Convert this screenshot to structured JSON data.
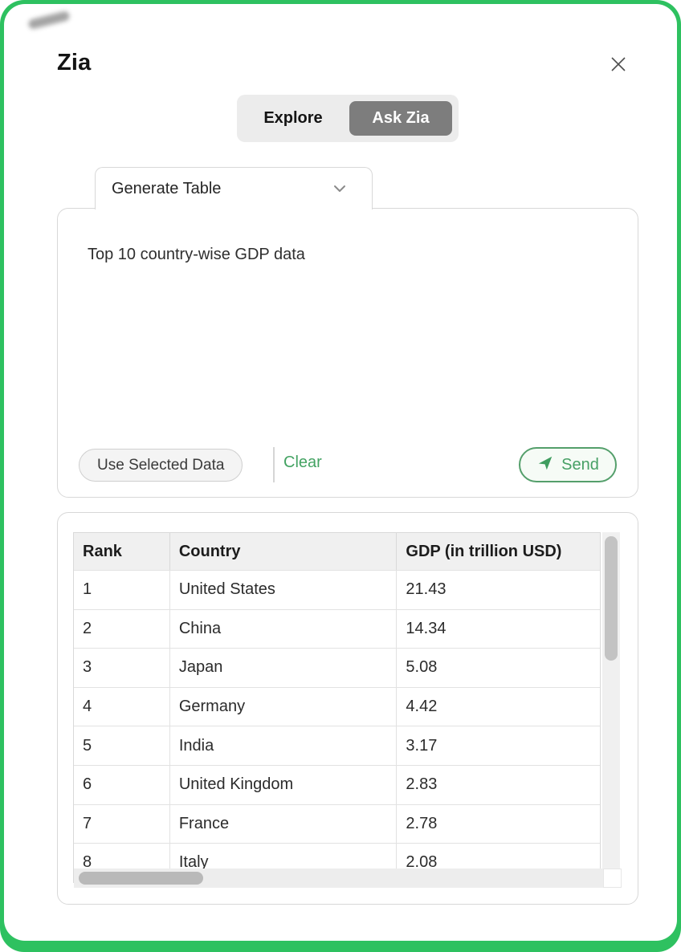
{
  "window": {
    "title": "Zia"
  },
  "mode_toggle": {
    "options": [
      {
        "label": "Explore",
        "selected": false
      },
      {
        "label": "Ask Zia",
        "selected": true
      }
    ]
  },
  "prompt": {
    "tab_label": "Generate Table",
    "text": "Top 10 country-wise GDP data",
    "use_selected_data_label": "Use Selected Data",
    "clear_label": "Clear",
    "send_label": "Send"
  },
  "table": {
    "columns": [
      "Rank",
      "Country",
      "GDP (in trillion USD)"
    ],
    "rows": [
      [
        "1",
        "United States",
        "21.43"
      ],
      [
        "2",
        "China",
        "14.34"
      ],
      [
        "3",
        "Japan",
        "5.08"
      ],
      [
        "4",
        "Germany",
        "4.42"
      ],
      [
        "5",
        "India",
        "3.17"
      ],
      [
        "6",
        "United Kingdom",
        "2.83"
      ],
      [
        "7",
        "France",
        "2.78"
      ],
      [
        "8",
        "Italy",
        "2.08"
      ]
    ]
  },
  "icons": {
    "close": "close-icon",
    "chevron": "chevron-down-icon",
    "send": "send-arrow-icon"
  },
  "colors": {
    "frame_green": "#2ec160",
    "link_green": "#44a363",
    "send_green": "#47a065",
    "selected_segment_gray": "#7d7d7d",
    "header_bg": "#f0f0f0"
  }
}
